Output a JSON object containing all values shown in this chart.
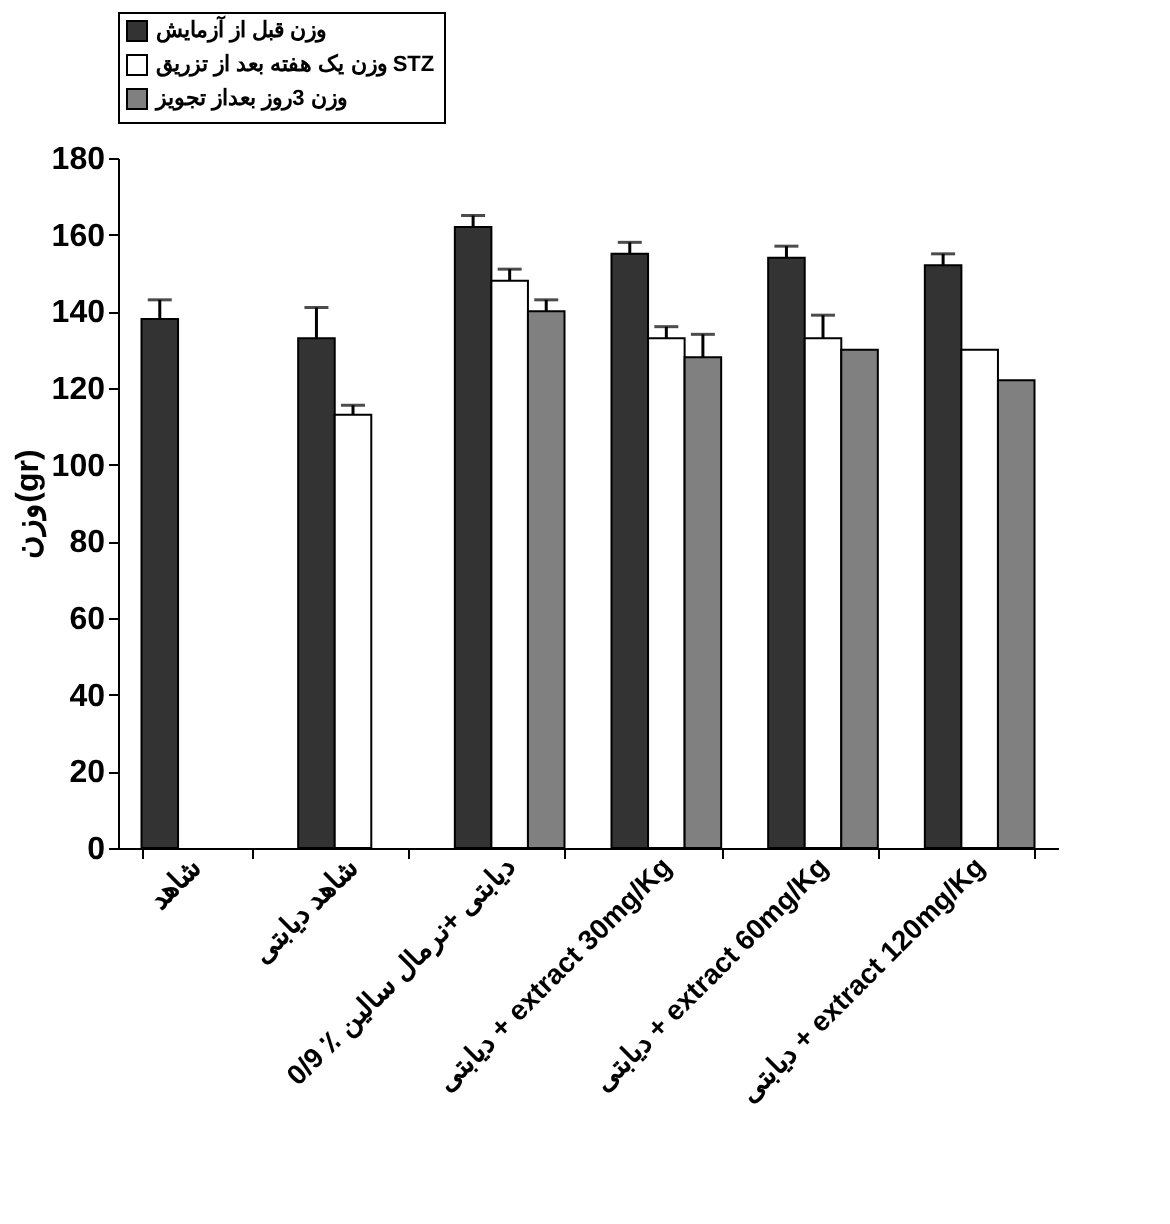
{
  "chart_data": {
    "type": "bar",
    "ylabel": "وزن(gr)",
    "categories": [
      "شاهد",
      "شاهد دیابتی",
      "دیابتی +نرمال سالین ٪ 0/9",
      "دیابتی + extract 30mg/Kg",
      "دیابتی + extract 60mg/Kg",
      "دیابتی + extract 120mg/Kg"
    ],
    "series": [
      {
        "name": "وزن قبل از آزمایش",
        "color": "#333333",
        "values": [
          138,
          133,
          162,
          155,
          154,
          152
        ],
        "errors": [
          5,
          8,
          3,
          3,
          3,
          3
        ]
      },
      {
        "name": "وزن یک هفته بعد از تزریق STZ",
        "color": "#ffffff",
        "values": [
          null,
          113,
          148,
          133,
          133,
          130
        ],
        "errors": [
          null,
          2.5,
          3,
          3,
          6,
          null
        ]
      },
      {
        "name": "وزن 3روز بعداز تجویز",
        "color": "#808080",
        "values": [
          null,
          null,
          140,
          128,
          130,
          122
        ],
        "errors": [
          null,
          null,
          3,
          6,
          null,
          null
        ]
      }
    ],
    "ylim": [
      0,
      180
    ],
    "yticks": [
      0,
      20,
      40,
      60,
      80,
      100,
      120,
      140,
      160,
      180
    ],
    "grid": false,
    "legend": "top"
  }
}
